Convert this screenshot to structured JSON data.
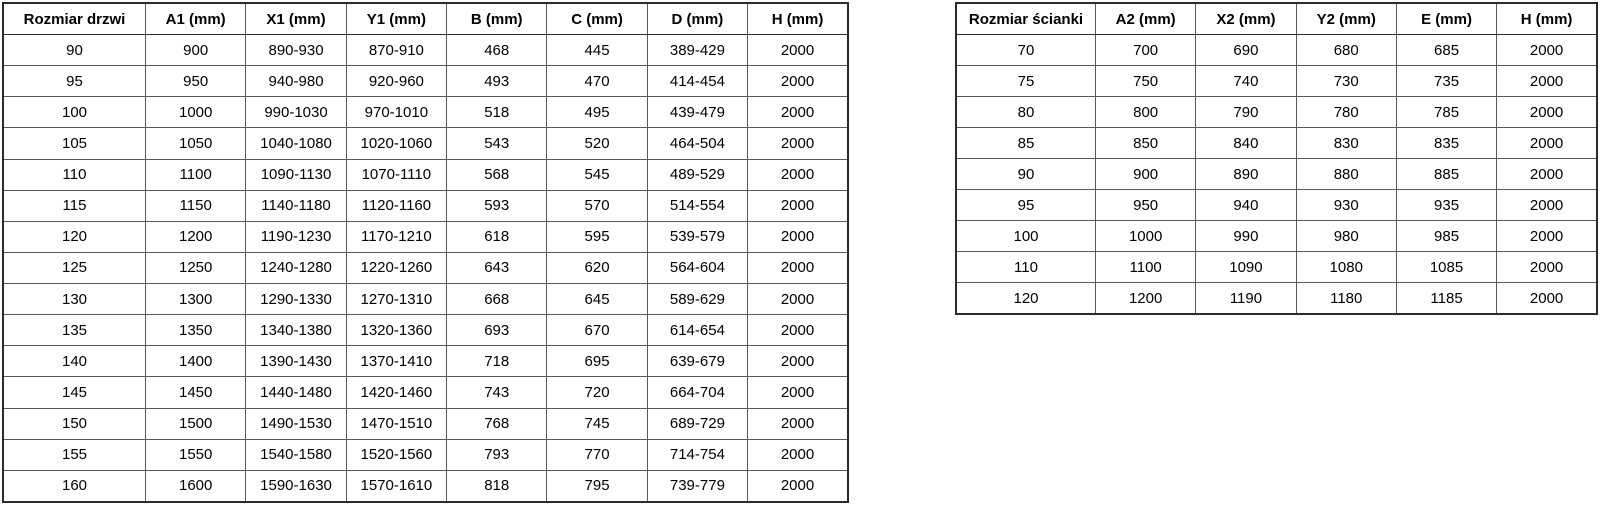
{
  "page": {
    "background_color": "#ffffff",
    "border_color": "#2b2b2b",
    "inner_border_color": "#5a5a5a",
    "text_color": "#000000"
  },
  "tables": [
    {
      "id": "door-table",
      "name": "door-dimensions-table",
      "headers": [
        "Rozmiar drzwi",
        "A1 (mm)",
        "X1 (mm)",
        "Y1 (mm)",
        "B (mm)",
        "C (mm)",
        "D (mm)",
        "H (mm)"
      ],
      "rows": [
        [
          "90",
          "900",
          "890-930",
          "870-910",
          "468",
          "445",
          "389-429",
          "2000"
        ],
        [
          "95",
          "950",
          "940-980",
          "920-960",
          "493",
          "470",
          "414-454",
          "2000"
        ],
        [
          "100",
          "1000",
          "990-1030",
          "970-1010",
          "518",
          "495",
          "439-479",
          "2000"
        ],
        [
          "105",
          "1050",
          "1040-1080",
          "1020-1060",
          "543",
          "520",
          "464-504",
          "2000"
        ],
        [
          "110",
          "1100",
          "1090-1130",
          "1070-1110",
          "568",
          "545",
          "489-529",
          "2000"
        ],
        [
          "115",
          "1150",
          "1140-1180",
          "1120-1160",
          "593",
          "570",
          "514-554",
          "2000"
        ],
        [
          "120",
          "1200",
          "1190-1230",
          "1170-1210",
          "618",
          "595",
          "539-579",
          "2000"
        ],
        [
          "125",
          "1250",
          "1240-1280",
          "1220-1260",
          "643",
          "620",
          "564-604",
          "2000"
        ],
        [
          "130",
          "1300",
          "1290-1330",
          "1270-1310",
          "668",
          "645",
          "589-629",
          "2000"
        ],
        [
          "135",
          "1350",
          "1340-1380",
          "1320-1360",
          "693",
          "670",
          "614-654",
          "2000"
        ],
        [
          "140",
          "1400",
          "1390-1430",
          "1370-1410",
          "718",
          "695",
          "639-679",
          "2000"
        ],
        [
          "145",
          "1450",
          "1440-1480",
          "1420-1460",
          "743",
          "720",
          "664-704",
          "2000"
        ],
        [
          "150",
          "1500",
          "1490-1530",
          "1470-1510",
          "768",
          "745",
          "689-729",
          "2000"
        ],
        [
          "155",
          "1550",
          "1540-1580",
          "1520-1560",
          "793",
          "770",
          "714-754",
          "2000"
        ],
        [
          "160",
          "1600",
          "1590-1630",
          "1570-1610",
          "818",
          "795",
          "739-779",
          "2000"
        ]
      ]
    },
    {
      "id": "wall-table",
      "name": "side-wall-dimensions-table",
      "headers": [
        "Rozmiar ścianki",
        "A2 (mm)",
        "X2 (mm)",
        "Y2 (mm)",
        "E (mm)",
        "H (mm)"
      ],
      "rows": [
        [
          "70",
          "700",
          "690",
          "680",
          "685",
          "2000"
        ],
        [
          "75",
          "750",
          "740",
          "730",
          "735",
          "2000"
        ],
        [
          "80",
          "800",
          "790",
          "780",
          "785",
          "2000"
        ],
        [
          "85",
          "850",
          "840",
          "830",
          "835",
          "2000"
        ],
        [
          "90",
          "900",
          "890",
          "880",
          "885",
          "2000"
        ],
        [
          "95",
          "950",
          "940",
          "930",
          "935",
          "2000"
        ],
        [
          "100",
          "1000",
          "990",
          "980",
          "985",
          "2000"
        ],
        [
          "110",
          "1100",
          "1090",
          "1080",
          "1085",
          "2000"
        ],
        [
          "120",
          "1200",
          "1190",
          "1180",
          "1185",
          "2000"
        ]
      ]
    }
  ]
}
